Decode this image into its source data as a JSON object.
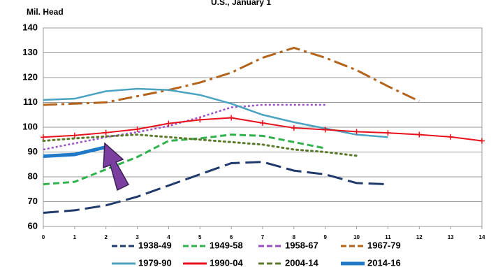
{
  "chart_data": {
    "type": "line",
    "title": "U.S., January 1",
    "y_label": "Mil. Head",
    "x": [
      0,
      1,
      2,
      3,
      4,
      5,
      6,
      7,
      8,
      9,
      10,
      11,
      12,
      13,
      14
    ],
    "xlim": [
      0,
      14
    ],
    "xticks": [
      0,
      1,
      2,
      3,
      4,
      5,
      6,
      7,
      8,
      9,
      10,
      11,
      12,
      13,
      14
    ],
    "ylim": [
      60,
      140
    ],
    "yticks": [
      60,
      70,
      80,
      90,
      100,
      110,
      120,
      130,
      140
    ],
    "grid": true,
    "series": [
      {
        "name": "1938-49",
        "color": "#1f3a6b",
        "values": [
          65.5,
          66.5,
          68.5,
          72,
          76.5,
          81,
          85.5,
          86,
          82.5,
          81,
          77.5,
          77,
          null,
          null,
          null
        ]
      },
      {
        "name": "1949-58",
        "color": "#2fb24c",
        "values": [
          77,
          78,
          83,
          88,
          94.5,
          95.5,
          97,
          96.5,
          94,
          91.5,
          null,
          null,
          null,
          null,
          null
        ]
      },
      {
        "name": "1958-67",
        "color": "#9b4fc8",
        "values": [
          91,
          93.5,
          96,
          98,
          100.5,
          104,
          108,
          109,
          109,
          109,
          null,
          null,
          null,
          null,
          null
        ]
      },
      {
        "name": "1967-79",
        "color": "#b3631a",
        "values": [
          109,
          109.5,
          110,
          112.5,
          115,
          118,
          122,
          128,
          132,
          128,
          123,
          116.5,
          110.5,
          null,
          null
        ]
      },
      {
        "name": "1979-90",
        "color": "#4aa3c0",
        "values": [
          111,
          111.5,
          114.5,
          115.5,
          115,
          113,
          109.5,
          105,
          102,
          99.5,
          97,
          96,
          null,
          null,
          null
        ]
      },
      {
        "name": "1990-04",
        "color": "#e8101a",
        "values": [
          96,
          96.7,
          97.8,
          99.2,
          101.5,
          103,
          103.8,
          101.7,
          99.7,
          99,
          98.2,
          97.7,
          97,
          96.1,
          94.5
        ]
      },
      {
        "name": "2004-14",
        "color": "#5a7a2a",
        "values": [
          94.5,
          95.5,
          96.3,
          97,
          96,
          95,
          94,
          93,
          91,
          90,
          88.5,
          null,
          null,
          null,
          null
        ]
      },
      {
        "name": "2014-16",
        "color": "#1f78c8",
        "values": [
          88.3,
          89,
          92,
          null,
          null,
          null,
          null,
          null,
          null,
          null,
          null,
          null,
          null,
          null,
          null
        ]
      }
    ]
  }
}
